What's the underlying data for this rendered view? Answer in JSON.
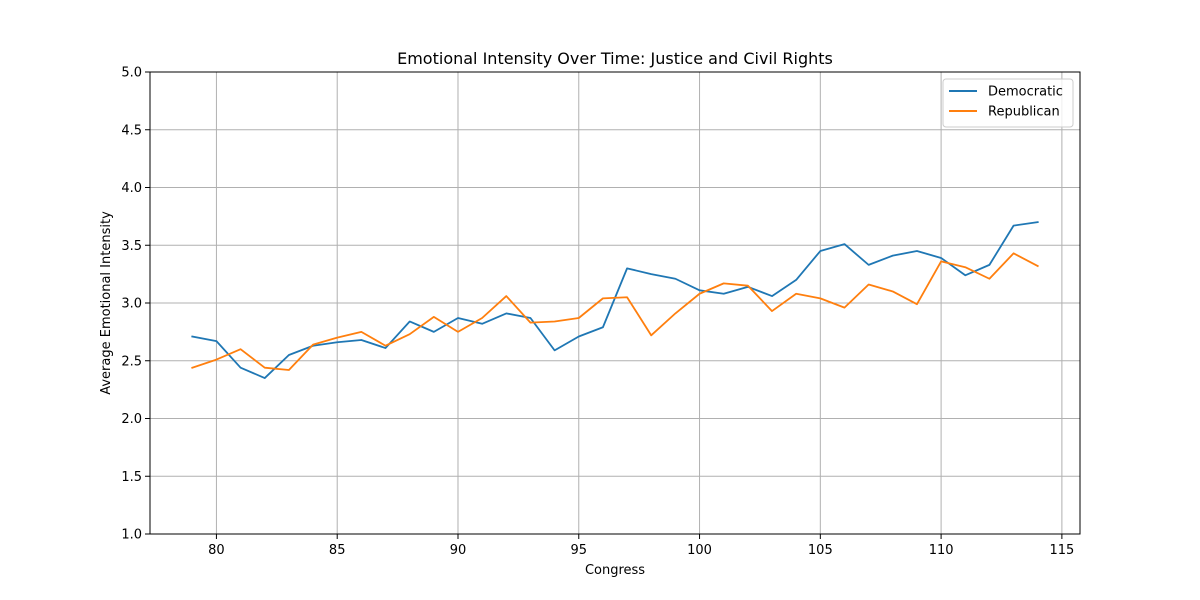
{
  "chart_data": {
    "type": "line",
    "title": "Emotional Intensity Over Time: Justice and Civil Rights",
    "xlabel": "Congress",
    "ylabel": "Average Emotional Intensity",
    "xlim": [
      77.25,
      115.75
    ],
    "ylim": [
      1.0,
      5.0
    ],
    "xticks": [
      80,
      85,
      90,
      95,
      100,
      105,
      110,
      115
    ],
    "yticks": [
      1.0,
      1.5,
      2.0,
      2.5,
      3.0,
      3.5,
      4.0,
      4.5,
      5.0
    ],
    "grid": true,
    "legend_position": "top-right",
    "x": [
      79,
      80,
      81,
      82,
      83,
      84,
      85,
      86,
      87,
      88,
      89,
      90,
      91,
      92,
      93,
      94,
      95,
      96,
      97,
      98,
      99,
      100,
      101,
      102,
      103,
      104,
      105,
      106,
      107,
      108,
      109,
      110,
      111,
      112,
      113,
      114
    ],
    "series": [
      {
        "name": "Democratic",
        "color": "#1f77b4",
        "values": [
          2.71,
          2.67,
          2.44,
          2.35,
          2.55,
          2.63,
          2.66,
          2.68,
          2.61,
          2.84,
          2.75,
          2.87,
          2.82,
          2.91,
          2.87,
          2.59,
          2.71,
          2.79,
          3.3,
          3.25,
          3.21,
          3.11,
          3.08,
          3.14,
          3.06,
          3.2,
          3.45,
          3.51,
          3.33,
          3.41,
          3.45,
          3.39,
          3.24,
          3.33,
          3.67,
          3.7
        ]
      },
      {
        "name": "Republican",
        "color": "#ff7f0e",
        "values": [
          2.44,
          2.51,
          2.6,
          2.44,
          2.42,
          2.64,
          2.7,
          2.75,
          2.63,
          2.73,
          2.88,
          2.75,
          2.87,
          3.06,
          2.83,
          2.84,
          2.87,
          3.04,
          3.05,
          2.72,
          2.91,
          3.08,
          3.17,
          3.15,
          2.93,
          3.08,
          3.04,
          2.96,
          3.16,
          3.1,
          2.99,
          3.36,
          3.31,
          3.21,
          3.43,
          3.32
        ]
      }
    ]
  }
}
